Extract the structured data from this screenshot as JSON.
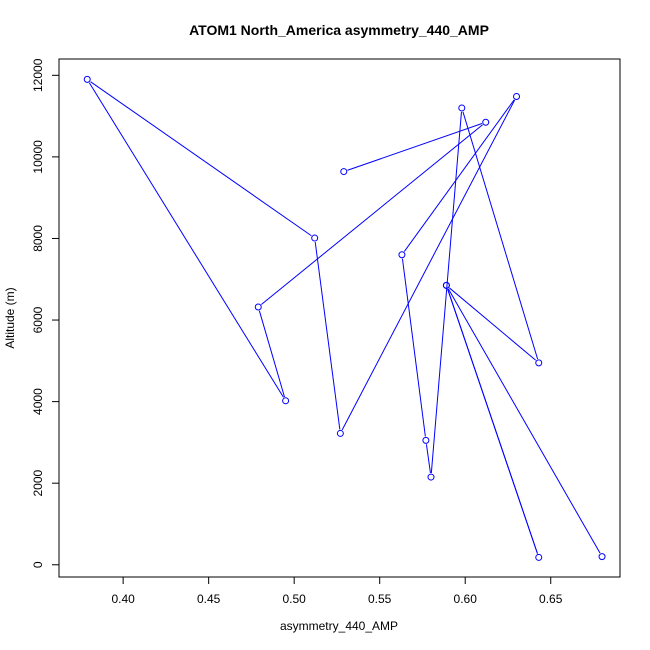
{
  "chart_data": {
    "type": "line",
    "title": "ATOM1 North_America asymmetry_440_AMP",
    "xlabel": "asymmetry_440_AMP",
    "ylabel": "Altitude (m)",
    "xlim": [
      0.3625,
      0.6905
    ],
    "ylim": [
      -300,
      12400
    ],
    "x_ticks": [
      0.4,
      0.45,
      0.5,
      0.55,
      0.6,
      0.65
    ],
    "x_tick_labels": [
      "0.40",
      "0.45",
      "0.50",
      "0.55",
      "0.60",
      "0.65"
    ],
    "y_ticks": [
      0,
      2000,
      4000,
      6000,
      8000,
      10000,
      12000
    ],
    "y_tick_labels": [
      "0",
      "2000",
      "4000",
      "6000",
      "8000",
      "10000",
      "12000"
    ],
    "grid": false,
    "series": [
      {
        "color": "#0000ff",
        "marker": "open-circle",
        "x": [
          0.68,
          0.589,
          0.643,
          0.589,
          0.643,
          0.598,
          0.58,
          0.577,
          0.563,
          0.63,
          0.527,
          0.512,
          0.379,
          0.495,
          0.479,
          0.612,
          0.529
        ],
        "y": [
          200,
          6850,
          180,
          6850,
          4950,
          11200,
          2150,
          3050,
          7600,
          11480,
          3220,
          8010,
          11900,
          4020,
          6320,
          10850,
          9640
        ]
      }
    ]
  }
}
